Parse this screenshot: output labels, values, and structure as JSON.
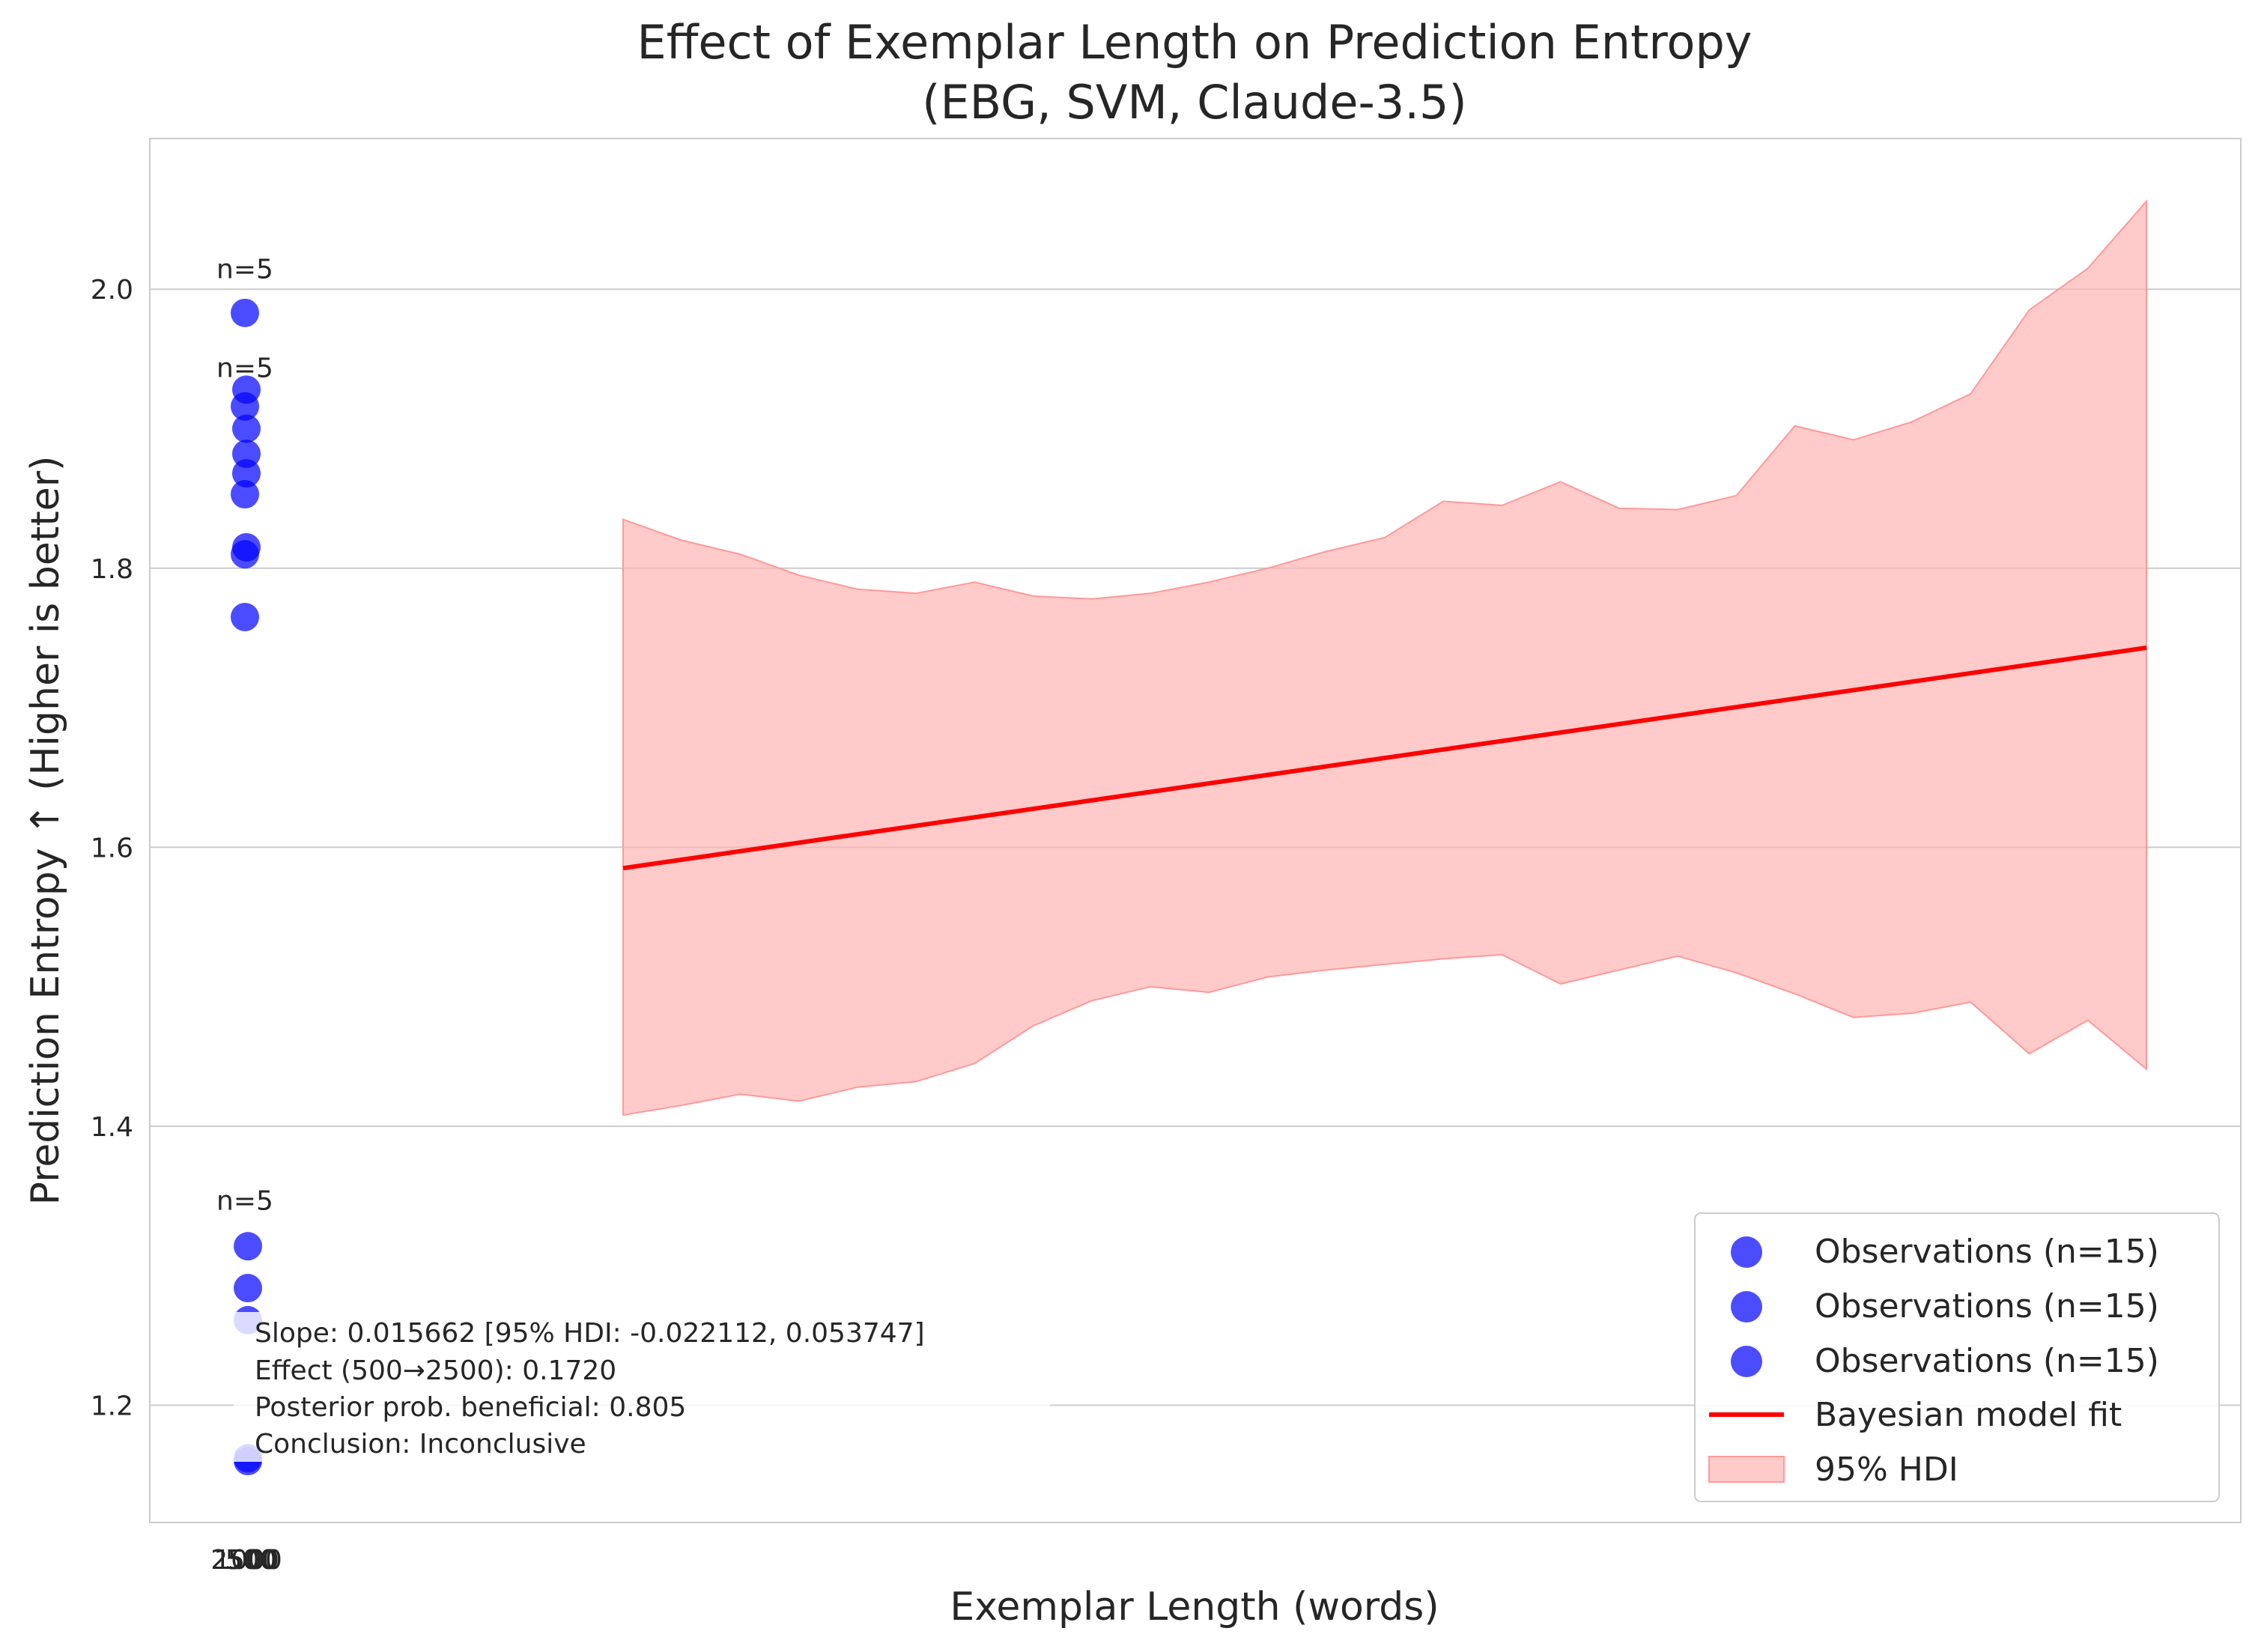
{
  "chart_data": {
    "type": "scatter",
    "title": "Effect of Exemplar Length on Prediction Entropy",
    "subtitle": "(EBG, SVM, Claude-3.5)",
    "xlabel": "Exemplar Length (words)",
    "ylabel": "Prediction Entropy ↑ (Higher is better)",
    "ylim": [
      1.116,
      2.108
    ],
    "y_ticks": [
      1.2,
      1.4,
      1.6,
      1.8,
      2.0
    ],
    "y_tick_labels": [
      "1.2",
      "1.4",
      "1.6",
      "1.8",
      "2.0"
    ],
    "x_tick_labels": [
      "2500",
      "1000",
      "500",
      "0"
    ],
    "grid": "horizontal",
    "legend_position": "bottom-right",
    "colors": {
      "observations": "#0000ff",
      "fit": "#ff0000",
      "hdi": "#ffb3b3",
      "grid": "#cccccc",
      "text": "#262626"
    },
    "series": [
      {
        "name": "Observations (n=15)",
        "type": "scatter",
        "values": [
          1.983,
          1.853,
          1.81,
          1.916,
          1.765
        ]
      },
      {
        "name": "Observations (n=15)",
        "type": "scatter",
        "values": [
          1.928,
          1.9,
          1.882,
          1.868,
          1.815
        ]
      },
      {
        "name": "Observations (n=15)",
        "type": "scatter",
        "values": [
          1.314,
          1.284,
          1.261,
          1.162,
          1.16
        ]
      }
    ],
    "group_labels": [
      {
        "text": "n=5",
        "y": 2.008
      },
      {
        "text": "n=5",
        "y": 1.937
      },
      {
        "text": "n=5",
        "y": 1.34
      }
    ],
    "fit": {
      "name": "Bayesian model fit",
      "start": 1.585,
      "end": 1.743
    },
    "hdi": {
      "name": "95% HDI",
      "upper": [
        1.835,
        1.82,
        1.81,
        1.795,
        1.785,
        1.782,
        1.79,
        1.78,
        1.778,
        1.782,
        1.79,
        1.8,
        1.812,
        1.822,
        1.848,
        1.845,
        1.862,
        1.843,
        1.842,
        1.852,
        1.902,
        1.892,
        1.905,
        1.925,
        1.985,
        2.015,
        2.063
      ],
      "lower": [
        1.408,
        1.415,
        1.423,
        1.418,
        1.428,
        1.432,
        1.445,
        1.472,
        1.49,
        1.5,
        1.496,
        1.507,
        1.512,
        1.516,
        1.52,
        1.523,
        1.502,
        1.512,
        1.522,
        1.51,
        1.495,
        1.478,
        1.481,
        1.489,
        1.452,
        1.476,
        1.441
      ]
    },
    "annotation": [
      "Slope: 0.015662 [95% HDI: -0.022112, 0.053747]",
      "Effect (500→2500): 0.1720",
      "Posterior prob. beneficial: 0.805",
      "Conclusion: Inconclusive"
    ]
  }
}
